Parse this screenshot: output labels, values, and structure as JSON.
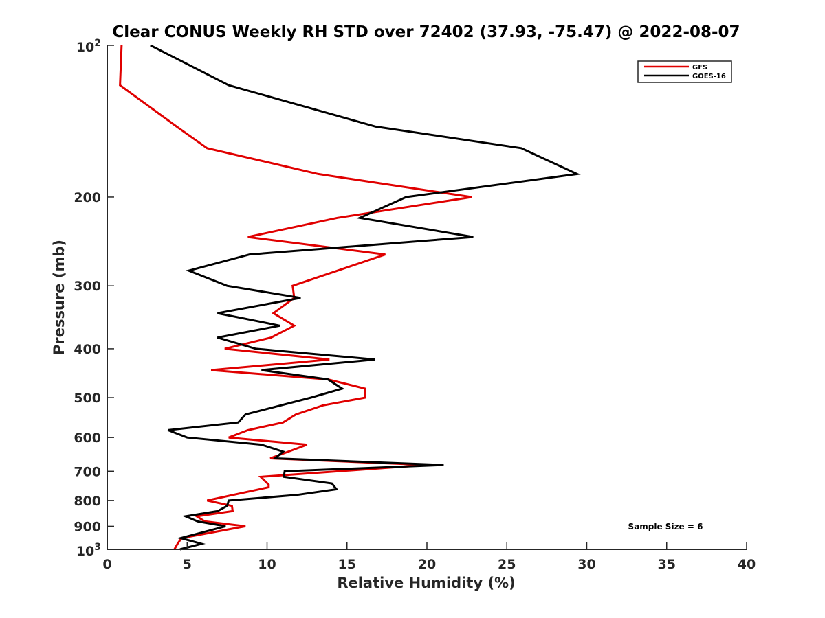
{
  "chart_data": {
    "type": "line",
    "title": "Clear CONUS Weekly RH STD over 72402 (37.93, -75.47) @ 2022-08-07",
    "xlabel": "Relative Humidity (%)",
    "ylabel": "Pressure (mb)",
    "xlim": [
      0,
      40
    ],
    "ylim": [
      100,
      1000
    ],
    "yscale": "log",
    "yreversed": true,
    "grid": false,
    "legend_position": "top-right",
    "xticks": [
      0,
      5,
      10,
      15,
      20,
      25,
      30,
      35,
      40
    ],
    "xtick_labels": [
      "0",
      "5",
      "10",
      "15",
      "20",
      "25",
      "30",
      "35",
      "40"
    ],
    "yticks": [
      {
        "value": 100,
        "base": "10",
        "exp": "2"
      },
      {
        "value": 200,
        "label": "200"
      },
      {
        "value": 300,
        "label": "300"
      },
      {
        "value": 400,
        "label": "400"
      },
      {
        "value": 500,
        "label": "500"
      },
      {
        "value": 600,
        "label": "600"
      },
      {
        "value": 700,
        "label": "700"
      },
      {
        "value": 800,
        "label": "800"
      },
      {
        "value": 900,
        "label": "900"
      },
      {
        "value": 1000,
        "base": "10",
        "exp": "3"
      }
    ],
    "annotation": "Sample Size = 6",
    "series": [
      {
        "name": "GFS",
        "color": "#e00000",
        "points": [
          [
            0.9,
            100
          ],
          [
            0.8,
            120
          ],
          [
            4.35,
            145
          ],
          [
            6.25,
            160
          ],
          [
            13.2,
            180
          ],
          [
            22.8,
            200
          ],
          [
            14.4,
            220
          ],
          [
            8.8,
            240
          ],
          [
            17.4,
            260
          ],
          [
            14.4,
            280
          ],
          [
            11.6,
            300
          ],
          [
            11.7,
            317
          ],
          [
            10.4,
            340
          ],
          [
            11.7,
            360
          ],
          [
            10.25,
            380
          ],
          [
            7.35,
            400
          ],
          [
            13.9,
            420
          ],
          [
            6.5,
            441
          ],
          [
            13.8,
            460
          ],
          [
            16.15,
            480
          ],
          [
            16.15,
            500
          ],
          [
            13.5,
            518
          ],
          [
            11.8,
            540
          ],
          [
            11.0,
            560
          ],
          [
            8.8,
            580
          ],
          [
            7.6,
            600
          ],
          [
            12.5,
            620
          ],
          [
            10.2,
            660
          ],
          [
            20.0,
            680
          ],
          [
            9.6,
            718
          ],
          [
            10.1,
            744
          ],
          [
            10.1,
            753
          ],
          [
            6.25,
            800
          ],
          [
            7.8,
            820
          ],
          [
            7.85,
            840
          ],
          [
            5.6,
            860
          ],
          [
            6.1,
            880
          ],
          [
            8.65,
            900
          ],
          [
            4.65,
            950
          ],
          [
            4.4,
            975
          ],
          [
            4.2,
            1000
          ]
        ]
      },
      {
        "name": "GOES-16",
        "color": "#000000",
        "points": [
          [
            2.7,
            100
          ],
          [
            7.6,
            120
          ],
          [
            16.8,
            145
          ],
          [
            25.9,
            160
          ],
          [
            29.4,
            180
          ],
          [
            18.7,
            200
          ],
          [
            15.8,
            220
          ],
          [
            22.9,
            240
          ],
          [
            8.9,
            260
          ],
          [
            5.1,
            280
          ],
          [
            7.5,
            300
          ],
          [
            12.1,
            317
          ],
          [
            6.9,
            340
          ],
          [
            10.8,
            360
          ],
          [
            6.9,
            380
          ],
          [
            9.3,
            400
          ],
          [
            16.75,
            420
          ],
          [
            9.65,
            441
          ],
          [
            13.8,
            460
          ],
          [
            14.7,
            480
          ],
          [
            12.75,
            500
          ],
          [
            8.65,
            540
          ],
          [
            8.2,
            560
          ],
          [
            3.8,
            580
          ],
          [
            5.0,
            600
          ],
          [
            9.65,
            620
          ],
          [
            11.0,
            640
          ],
          [
            10.5,
            660
          ],
          [
            21.05,
            680
          ],
          [
            11.1,
            700
          ],
          [
            11.05,
            718
          ],
          [
            14.05,
            740
          ],
          [
            14.35,
            760
          ],
          [
            11.85,
            780
          ],
          [
            7.6,
            800
          ],
          [
            7.5,
            820
          ],
          [
            6.9,
            840
          ],
          [
            4.9,
            860
          ],
          [
            5.65,
            880
          ],
          [
            7.4,
            900
          ],
          [
            4.6,
            950
          ],
          [
            5.9,
            975
          ],
          [
            4.55,
            1000
          ]
        ]
      }
    ]
  }
}
